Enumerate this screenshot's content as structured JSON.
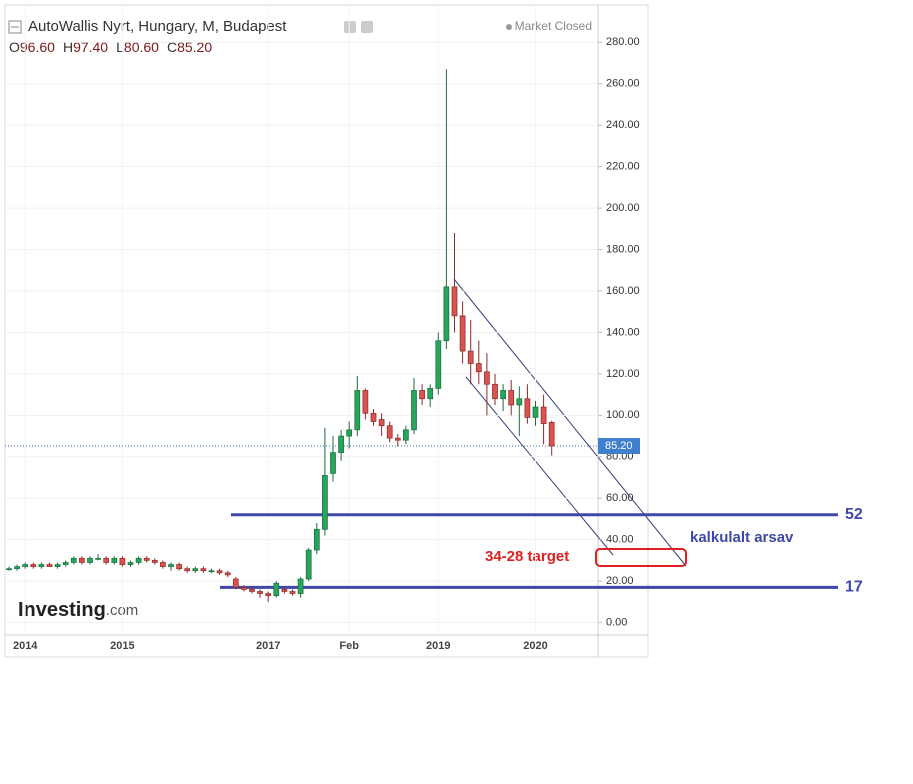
{
  "chart_data": {
    "type": "candlestick",
    "title": "AutoWallis Nyrt, Hungary, M, Budapest",
    "status": "Market Closed",
    "ohlc_header": [
      {
        "key": "O",
        "value": "96.60"
      },
      {
        "key": "H",
        "value": "97.40"
      },
      {
        "key": "L",
        "value": "80.60"
      },
      {
        "key": "C",
        "value": "85.20"
      }
    ],
    "logo": "Investing",
    "logo_suffix": ".com",
    "categories": [
      null,
      null,
      "2014",
      null,
      null,
      null,
      null,
      null,
      null,
      null,
      null,
      null,
      null,
      null,
      "2015",
      null,
      null,
      null,
      null,
      null,
      null,
      null,
      null,
      null,
      null,
      null,
      null,
      null,
      null,
      null,
      null,
      null,
      "2017",
      null,
      null,
      null,
      null,
      null,
      null,
      null,
      null,
      null,
      "Feb",
      null,
      null,
      null,
      null,
      null,
      null,
      null,
      null,
      null,
      null,
      "2019",
      null,
      null,
      null,
      null,
      null,
      null,
      null,
      null,
      null,
      null,
      null,
      "2020",
      null,
      null
    ],
    "open": [
      26,
      26,
      27,
      28,
      27,
      28,
      27,
      28,
      29,
      31,
      29,
      31,
      31,
      29,
      31,
      28,
      29,
      31,
      30,
      29,
      27,
      28,
      26,
      25,
      26,
      25,
      25,
      24,
      21,
      17,
      16,
      15,
      14,
      13,
      16,
      15,
      14,
      21,
      35,
      45,
      72,
      82,
      90,
      93,
      112,
      101,
      98,
      95,
      89,
      88,
      93,
      112,
      108,
      113,
      136,
      162,
      148,
      131,
      125,
      121,
      115,
      108,
      112,
      105,
      108,
      99,
      104,
      96.6
    ],
    "high": [
      27,
      28,
      29,
      29,
      29,
      29,
      29,
      30,
      32,
      32,
      32,
      33,
      32,
      32,
      32,
      30,
      32,
      32,
      31,
      30,
      29,
      29,
      27,
      27,
      27,
      26,
      26,
      25,
      22,
      18,
      17,
      16,
      15,
      20,
      17,
      16,
      22,
      36,
      48,
      94,
      90,
      93,
      97,
      119,
      113,
      103,
      101,
      97,
      91,
      95,
      118,
      115,
      115,
      140,
      267,
      188,
      155,
      146,
      136,
      130,
      120,
      115,
      117,
      114,
      115,
      107,
      110,
      97.4
    ],
    "low": [
      25,
      25,
      26,
      26,
      26,
      27,
      26,
      27,
      28,
      28,
      28,
      30,
      28,
      28,
      27,
      27,
      28,
      29,
      28,
      26,
      25,
      25,
      24,
      24,
      24,
      24,
      23,
      22,
      16,
      15,
      14,
      12,
      10,
      12,
      14,
      13,
      12,
      20,
      33,
      42,
      68,
      78,
      84,
      90,
      98,
      95,
      90,
      87,
      85,
      86,
      91,
      105,
      104,
      110,
      132,
      140,
      125,
      115,
      115,
      100,
      105,
      102,
      100,
      90,
      96,
      95,
      86,
      80.6
    ],
    "close": [
      26,
      27,
      28,
      27,
      28,
      27,
      28,
      29,
      31,
      29,
      31,
      31,
      29,
      31,
      28,
      29,
      31,
      30,
      29,
      27,
      28,
      26,
      25,
      26,
      25,
      25,
      24,
      23,
      17,
      16,
      15,
      14,
      13,
      19,
      15,
      14,
      21,
      35,
      45,
      71,
      82,
      90,
      93,
      112,
      101,
      97,
      95,
      89,
      88,
      93,
      112,
      108,
      113,
      136,
      162,
      148,
      131,
      125,
      121,
      115,
      108,
      112,
      105,
      108,
      99,
      104,
      96,
      85.2
    ],
    "up_color": "#26a65b",
    "down_color": "#d9534f",
    "ylim": [
      -6,
      298
    ],
    "yticks": [
      {
        "value": 0,
        "label": "0.00"
      },
      {
        "value": 20,
        "label": "20.00"
      },
      {
        "value": 40,
        "label": "40.00"
      },
      {
        "value": 60,
        "label": "60.00"
      },
      {
        "value": 80,
        "label": "80.00"
      },
      {
        "value": 100,
        "label": "100.00"
      },
      {
        "value": 120,
        "label": "120.00"
      },
      {
        "value": 140,
        "label": "140.00"
      },
      {
        "value": 160,
        "label": "160.00"
      },
      {
        "value": 180,
        "label": "180.00"
      },
      {
        "value": 200,
        "label": "200.00"
      },
      {
        "value": 220,
        "label": "220.00"
      },
      {
        "value": 240,
        "label": "240.00"
      },
      {
        "value": 260,
        "label": "260.00"
      },
      {
        "value": 280,
        "label": "280.00"
      }
    ],
    "grid": true,
    "current_price": {
      "value": 85.2,
      "label": "85.20"
    },
    "hlines": [
      52,
      17
    ],
    "hline_color": "#3f48a8",
    "annotations": [
      "34-28 target",
      "kalkulalt arsav"
    ]
  }
}
